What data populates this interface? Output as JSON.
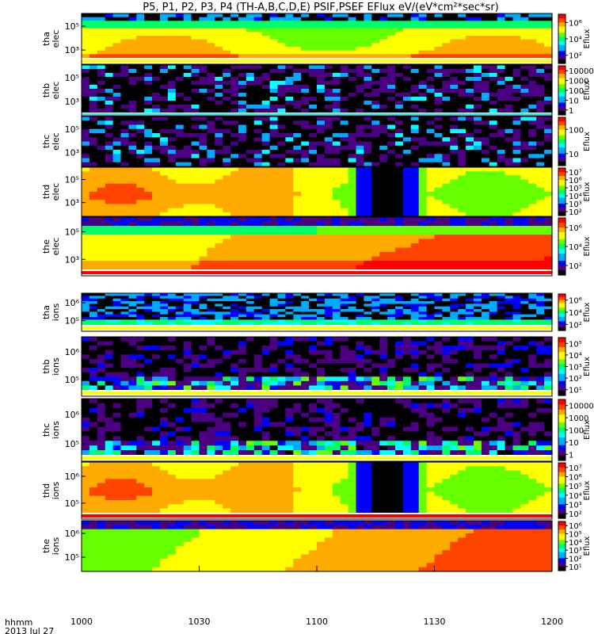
{
  "chart_data": {
    "type": "heatmap",
    "title": "P5, P1, P2, P3, P4 (TH-A,B,C,D,E) PSIF,PSEF EFlux eV/(eV*cm²*sec*sr)",
    "x_axis": {
      "tick_labels": [
        "1000",
        "1030",
        "1100",
        "1130",
        "1200"
      ],
      "corner_label_line1": "hhmm",
      "corner_label_line2": "2013 Jul 27"
    },
    "panels": [
      {
        "ylabel_line1": "tha",
        "ylabel_line2": "elec",
        "yticks": [
          "10⁵",
          "10³"
        ],
        "cbar_label": "Eflux",
        "cbar_ticks": [
          "10⁶",
          "10⁴",
          "10²"
        ],
        "profile": "tha_elec",
        "bottom_band": "yellow"
      },
      {
        "ylabel_line1": "thb",
        "ylabel_line2": "elec",
        "yticks": [
          "10⁵",
          "10³"
        ],
        "cbar_label": "Eflux",
        "cbar_ticks": [
          "10000",
          "1000",
          "100",
          "10",
          "1"
        ],
        "profile": "sparse",
        "bottom_band": "cyan"
      },
      {
        "ylabel_line1": "thc",
        "ylabel_line2": "elec",
        "yticks": [
          "10⁵",
          "10³"
        ],
        "cbar_label": "Eflux",
        "cbar_ticks": [
          "100",
          "10"
        ],
        "profile": "sparse",
        "bottom_band": "none"
      },
      {
        "ylabel_line1": "thd",
        "ylabel_line2": "elec",
        "yticks": [
          "10⁵",
          "10³"
        ],
        "cbar_label": "Eflux",
        "cbar_ticks": [
          "10⁷",
          "10⁶",
          "10⁵",
          "10⁴",
          "10³",
          "10²"
        ],
        "profile": "thd",
        "bottom_band": "none"
      },
      {
        "ylabel_line1": "the",
        "ylabel_line2": "elec",
        "yticks": [
          "10⁵",
          "10³"
        ],
        "cbar_label": "Eflux",
        "cbar_ticks": [
          "10⁶",
          "10⁴",
          "10²"
        ],
        "profile": "the_elec",
        "bottom_band": "red"
      },
      {
        "ylabel_line1": "tha",
        "ylabel_line2": "ions",
        "yticks": [
          "10⁶",
          "10⁵"
        ],
        "cbar_label": "Eflux",
        "cbar_ticks": [
          "10⁶",
          "10⁴",
          "10²"
        ],
        "profile": "tha_ions",
        "bottom_band": "yellow"
      },
      {
        "ylabel_line1": "thb",
        "ylabel_line2": "ions",
        "yticks": [
          "10⁶",
          "10⁵"
        ],
        "cbar_label": "Eflux",
        "cbar_ticks": [
          "10⁵",
          "10⁴",
          "10³",
          "10²",
          "10¹"
        ],
        "profile": "sparse_ions",
        "bottom_band": "yellow"
      },
      {
        "ylabel_line1": "thc",
        "ylabel_line2": "ions",
        "yticks": [
          "10⁶",
          "10⁵"
        ],
        "cbar_label": "Eflux",
        "cbar_ticks": [
          "10000",
          "1000",
          "100",
          "10",
          "1"
        ],
        "profile": "sparse_ions",
        "bottom_band": "yellow"
      },
      {
        "ylabel_line1": "thd",
        "ylabel_line2": "ions",
        "yticks": [
          "10⁶",
          "10⁵"
        ],
        "cbar_label": "Eflux",
        "cbar_ticks": [
          "10⁷",
          "10⁶",
          "10⁵",
          "10⁴",
          "10³",
          "10²"
        ],
        "profile": "thd",
        "bottom_band": "red"
      },
      {
        "ylabel_line1": "the",
        "ylabel_line2": "ions",
        "yticks": [
          "10⁶",
          "10⁵"
        ],
        "cbar_label": "Eflux",
        "cbar_ticks": [
          "10⁶",
          "10⁵",
          "10⁴",
          "10³",
          "10²",
          "10¹"
        ],
        "profile": "the_ions",
        "bottom_band": "none"
      }
    ],
    "colors": {
      "colormap": [
        "#000000",
        "#4b0082",
        "#0000ff",
        "#00aaff",
        "#00ffff",
        "#00ff66",
        "#66ff00",
        "#ffff00",
        "#ffaa00",
        "#ff4400",
        "#ff0000"
      ],
      "yellow": "#ffff00",
      "red": "#ff0000",
      "cyan": "#00ffff"
    }
  }
}
